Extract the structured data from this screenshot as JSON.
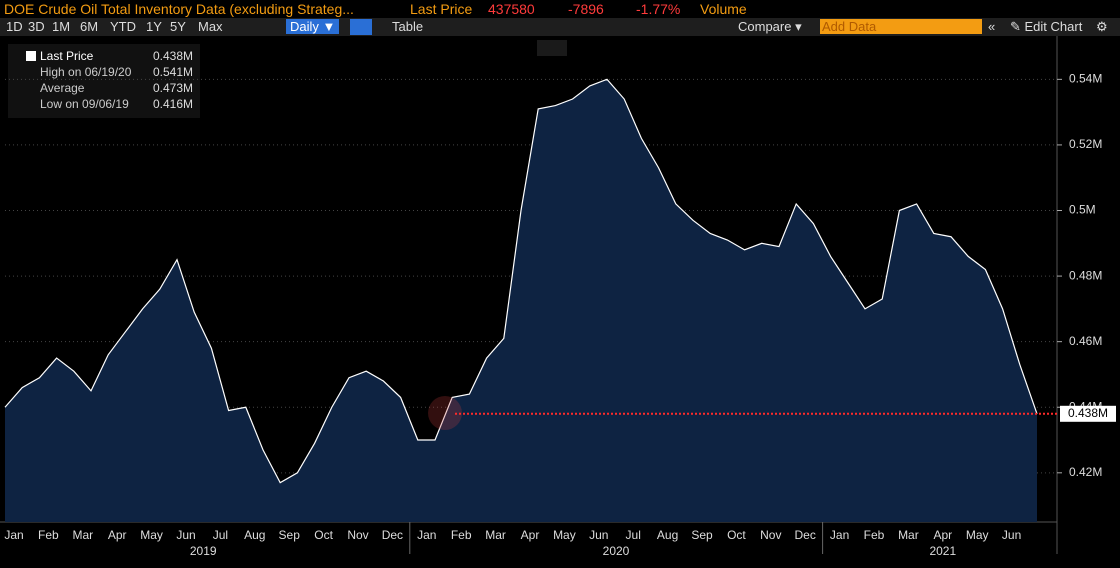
{
  "header": {
    "title": "DOE Crude Oil Total Inventory Data (excluding Strateg...",
    "last_price_label": "Last Price",
    "last_price": "437580",
    "change": "-7896",
    "change_pct": "-1.77%",
    "volume": "Volume"
  },
  "toolbar": {
    "ranges": [
      "1D",
      "3D",
      "1M",
      "6M",
      "YTD",
      "1Y",
      "5Y",
      "Max"
    ],
    "frequency": "Daily ▼",
    "table": "Table",
    "compare": "Compare ▾",
    "add_data": "Add Data",
    "edit_chart": "Edit Chart"
  },
  "legend_panel": {
    "rows": [
      [
        "Last Price",
        "0.438M"
      ],
      [
        "High on 06/19/20",
        "0.541M"
      ],
      [
        "Average",
        "0.473M"
      ],
      [
        "Low on 09/06/19",
        "0.416M"
      ]
    ]
  },
  "chart_data": {
    "type": "area",
    "color": "#ffffff",
    "fill": "#0e2342",
    "categories": [
      "Jan",
      null,
      "Feb",
      null,
      "Mar",
      null,
      "Apr",
      null,
      "May",
      null,
      "Jun",
      null,
      "Jul",
      null,
      "Aug",
      null,
      "Sep",
      null,
      "Oct",
      null,
      "Nov",
      null,
      "Dec",
      null,
      "Jan",
      null,
      "Feb",
      null,
      "Mar",
      null,
      "Apr",
      null,
      "May",
      null,
      "Jun",
      null,
      "Jul",
      null,
      "Aug",
      null,
      "Sep",
      null,
      "Oct",
      null,
      "Nov",
      null,
      "Dec",
      null,
      "Jan",
      null,
      "Feb",
      null,
      "Mar",
      null,
      "Apr",
      null,
      "May",
      null,
      "Jun",
      null,
      null
    ],
    "values": [
      0.44,
      0.446,
      0.449,
      0.455,
      0.451,
      0.445,
      0.456,
      0.463,
      0.47,
      0.476,
      0.485,
      0.469,
      0.458,
      0.439,
      0.44,
      0.427,
      0.417,
      0.42,
      0.429,
      0.44,
      0.449,
      0.451,
      0.448,
      0.443,
      0.43,
      0.43,
      0.443,
      0.444,
      0.455,
      0.461,
      0.5,
      0.531,
      0.532,
      0.534,
      0.538,
      0.54,
      0.534,
      0.522,
      0.513,
      0.502,
      0.497,
      0.493,
      0.491,
      0.488,
      0.49,
      0.489,
      0.502,
      0.496,
      0.486,
      0.478,
      0.47,
      0.473,
      0.5,
      0.502,
      0.493,
      0.492,
      0.486,
      0.482,
      0.47,
      0.453,
      0.438
    ],
    "years": [
      "2019",
      "2020",
      "2021"
    ],
    "ylim": [
      0.405,
      0.552
    ],
    "yticks": [
      {
        "value": 0.42,
        "label": "0.42M"
      },
      {
        "value": 0.44,
        "label": "0.44M"
      },
      {
        "value": 0.46,
        "label": "0.46M"
      },
      {
        "value": 0.48,
        "label": "0.48M"
      },
      {
        "value": 0.5,
        "label": "0.5M"
      },
      {
        "value": 0.52,
        "label": "0.52M"
      },
      {
        "value": 0.54,
        "label": "0.54M"
      }
    ],
    "grid": true,
    "last_value": {
      "value": 0.438,
      "label": "0.438M",
      "color": "#ff2a2a"
    }
  }
}
